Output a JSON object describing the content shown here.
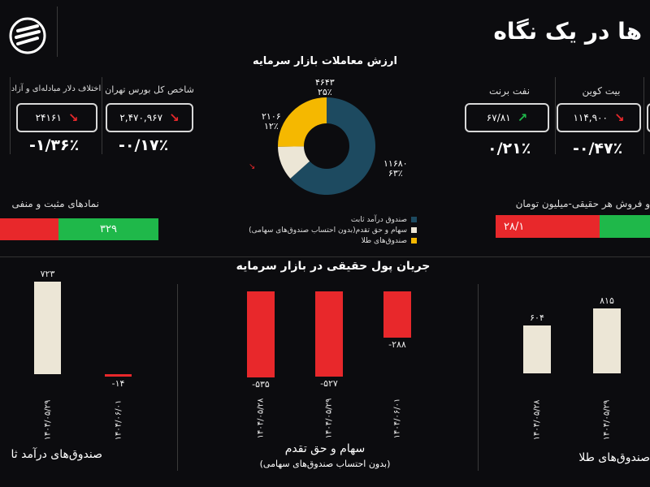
{
  "header": {
    "title": "ها در یک نگاه"
  },
  "market_value": {
    "title": "ارزش معاملات  بازار سرمایه",
    "slices": [
      {
        "label": "صندوق درآمد ثابت",
        "value": "۱۱۶۸۰",
        "pct": "۶۳٪",
        "color": "#1d4a60"
      },
      {
        "label": "سهام و حق تقدم(بدون احتساب صندوق‌های سهامی)",
        "value": "۲۱۰۶",
        "pct": "۱۲٪",
        "color": "#ece6d6"
      },
      {
        "label": "صندوق‌های طلا",
        "value": "۴۶۴۳",
        "pct": "۲۵٪",
        "color": "#f5b800"
      }
    ]
  },
  "indicators_left": [
    {
      "label": "شاخص کل بورس تهران",
      "value": "۲,۴۷۰,۹۶۷",
      "change": "-۰/۱۷٪"
    },
    {
      "label": "اختلاف دلار مبادله‌ای و آزاد",
      "value": "۲۴۱۶۱",
      "change": "-۱/۳۶٪"
    }
  ],
  "indicators_right": [
    {
      "label": "نفت برنت",
      "value": "۶۷/۸۱",
      "change": "۰/۲۱٪",
      "dir": "up"
    },
    {
      "label": "بیت کوین",
      "value": "۱۱۴,۹۰۰",
      "change": "-۰/۴۷٪",
      "dir": "down"
    }
  ],
  "symbols": {
    "label": "نمادهای مثبت و منفی",
    "positive": "۳۲۹"
  },
  "real_flow": {
    "label": "و فروش هر حقیقی-میلیون تومان",
    "value": "۲۸/۱"
  },
  "flow": {
    "title": "جریان پول حقیقی در بازار سرمایه",
    "income": {
      "footer": "صندوق‌های درآمد ثا"
    },
    "stocks": {
      "footer": "سهام و حق تقدم",
      "footer2": "(بدون احتساب صندوق‌های سهامی)"
    },
    "gold": {
      "footer": "صندوق‌های طلا"
    }
  },
  "chart_data": [
    {
      "type": "bar",
      "title": "",
      "categories": [
        "۱۴۰۴/۰۵/۲۹",
        "۱۴۰۴/۰۶/۰۱"
      ],
      "values": [
        723,
        -14
      ],
      "labels": [
        "۷۲۳",
        "-۱۴"
      ],
      "colors": [
        "#ece6d6",
        "#e8282b"
      ]
    },
    {
      "type": "bar",
      "title": "",
      "categories": [
        "۱۴۰۴/۰۵/۲۸",
        "۱۴۰۴/۰۵/۲۹",
        "۱۴۰۴/۰۶/۰۱"
      ],
      "values": [
        -535,
        -527,
        -288
      ],
      "labels": [
        "-۵۳۵",
        "-۵۲۷",
        "-۲۸۸"
      ],
      "colors": [
        "#e8282b",
        "#e8282b",
        "#e8282b"
      ]
    },
    {
      "type": "bar",
      "title": "",
      "categories": [
        "۱۴۰۴/۰۵/۲۸",
        "۱۴۰۴/۰۵/۲۹"
      ],
      "values": [
        604,
        815
      ],
      "labels": [
        "۶۰۴",
        "۸۱۵"
      ],
      "colors": [
        "#ece6d6",
        "#ece6d6"
      ]
    }
  ]
}
